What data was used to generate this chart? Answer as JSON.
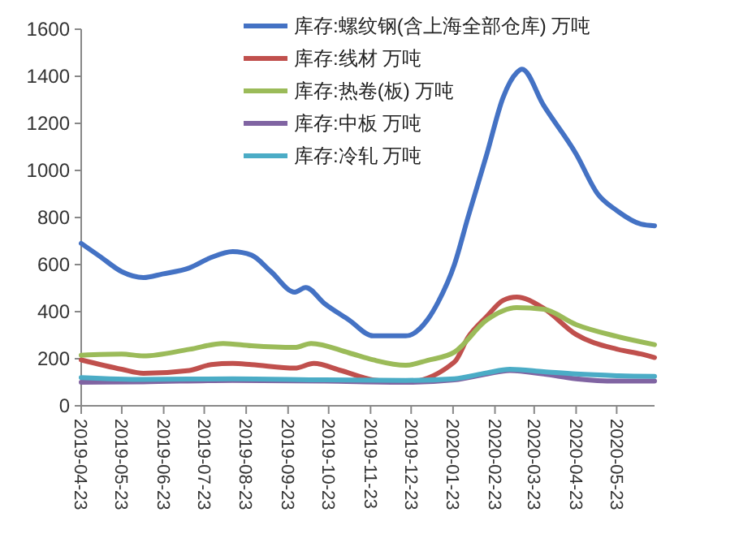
{
  "chart_data": {
    "type": "line",
    "xlim": [
      "2019-04-23",
      "2020-06-20"
    ],
    "xticks": [
      "2019-04-23",
      "2019-05-23",
      "2019-06-23",
      "2019-07-23",
      "2019-08-23",
      "2019-09-23",
      "2019-10-23",
      "2019-11-23",
      "2019-12-23",
      "2020-01-23",
      "2020-02-23",
      "2020-03-23",
      "2020-04-23",
      "2020-05-23"
    ],
    "ylim": [
      0,
      1600
    ],
    "yticks": [
      0,
      200,
      400,
      600,
      800,
      1000,
      1200,
      1400,
      1600
    ],
    "grid": false,
    "legend": "top",
    "line_style": "solid",
    "marker": "none",
    "series": [
      {
        "name": "库存:螺纹钢(含上海全部仓库) 万吨",
        "color": "#4472c4",
        "x": [
          "2019-04-23",
          "2019-05-07",
          "2019-05-23",
          "2019-06-08",
          "2019-06-22",
          "2019-07-12",
          "2019-07-28",
          "2019-08-13",
          "2019-08-27",
          "2019-09-10",
          "2019-09-28",
          "2019-10-06",
          "2019-10-20",
          "2019-11-07",
          "2019-11-25",
          "2019-12-19",
          "2020-01-04",
          "2020-01-12",
          "2020-01-24",
          "2020-02-03",
          "2020-02-17",
          "2020-02-29",
          "2020-03-10",
          "2020-03-14",
          "2020-03-30",
          "2020-04-23",
          "2020-05-09",
          "2020-05-23",
          "2020-06-10",
          "2020-06-20"
        ],
        "values": [
          690,
          634,
          570,
          545,
          560,
          586,
          630,
          655,
          640,
          572,
          483,
          503,
          434,
          365,
          297,
          297,
          365,
          441,
          600,
          800,
          1070,
          1310,
          1415,
          1430,
          1276,
          1070,
          900,
          830,
          772,
          765
        ]
      },
      {
        "name": "库存:线材 万吨",
        "color": "#c0504d",
        "x": [
          "2019-04-23",
          "2019-05-23",
          "2019-06-08",
          "2019-07-12",
          "2019-07-28",
          "2019-08-13",
          "2019-08-27",
          "2019-09-28",
          "2019-10-12",
          "2019-11-01",
          "2019-11-25",
          "2019-12-19",
          "2020-01-24",
          "2020-02-03",
          "2020-02-17",
          "2020-02-29",
          "2020-03-10",
          "2020-03-30",
          "2020-04-23",
          "2020-05-23",
          "2020-06-10",
          "2020-06-20"
        ],
        "values": [
          195,
          155,
          138,
          150,
          175,
          180,
          175,
          160,
          180,
          150,
          110,
          100,
          186,
          290,
          380,
          448,
          462,
          414,
          303,
          241,
          220,
          205
        ]
      },
      {
        "name": "库存:热卷(板) 万吨",
        "color": "#9bbb59",
        "x": [
          "2019-04-23",
          "2019-05-23",
          "2019-06-08",
          "2019-07-12",
          "2019-08-06",
          "2019-08-27",
          "2019-09-28",
          "2019-10-10",
          "2019-11-07",
          "2019-11-25",
          "2019-12-19",
          "2020-01-04",
          "2020-01-24",
          "2020-02-17",
          "2020-03-10",
          "2020-03-30",
          "2020-04-23",
          "2020-05-23",
          "2020-06-20"
        ],
        "values": [
          215,
          220,
          212,
          240,
          265,
          255,
          248,
          265,
          225,
          195,
          172,
          193,
          228,
          365,
          417,
          410,
          345,
          295,
          260
        ]
      },
      {
        "name": "库存:中板 万吨",
        "color": "#8064a2",
        "x": [
          "2019-04-23",
          "2019-06-08",
          "2019-08-13",
          "2019-10-20",
          "2019-12-19",
          "2020-01-24",
          "2020-02-17",
          "2020-03-05",
          "2020-03-30",
          "2020-04-23",
          "2020-05-23",
          "2020-06-20"
        ],
        "values": [
          100,
          102,
          108,
          105,
          100,
          110,
          135,
          150,
          135,
          115,
          105,
          105
        ]
      },
      {
        "name": "库存:冷轧 万吨",
        "color": "#4bacc6",
        "x": [
          "2019-04-23",
          "2019-06-08",
          "2019-08-13",
          "2019-10-20",
          "2019-12-19",
          "2020-01-24",
          "2020-02-17",
          "2020-03-05",
          "2020-03-30",
          "2020-04-23",
          "2020-05-23",
          "2020-06-20"
        ],
        "values": [
          120,
          112,
          115,
          110,
          108,
          115,
          140,
          155,
          145,
          135,
          128,
          125
        ]
      }
    ]
  }
}
